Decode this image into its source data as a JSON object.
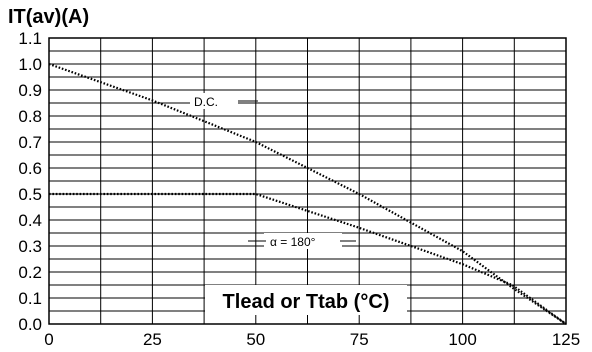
{
  "chart_data": {
    "type": "line",
    "title": "",
    "ylabel": "IT(av)(A)",
    "xlabel": "Tlead or Ttab (°C)",
    "xlim": [
      0,
      125
    ],
    "ylim": [
      0,
      1.1
    ],
    "xticks": [
      "0",
      "25",
      "50",
      "75",
      "100",
      "125"
    ],
    "yticks": [
      "0.0",
      "0.1",
      "0.2",
      "0.3",
      "0.4",
      "0.5",
      "0.6",
      "0.7",
      "0.8",
      "0.9",
      "1.0",
      "1.1"
    ],
    "grid": true,
    "series": [
      {
        "name": "D.C.",
        "x": [
          0,
          25,
          50,
          75,
          100,
          112,
          125
        ],
        "y": [
          1.0,
          0.86,
          0.7,
          0.5,
          0.28,
          0.14,
          0.0
        ]
      },
      {
        "name": "α = 180°",
        "x": [
          0,
          50,
          75,
          100,
          112,
          125
        ],
        "y": [
          0.5,
          0.5,
          0.37,
          0.23,
          0.15,
          0.0
        ]
      }
    ]
  }
}
